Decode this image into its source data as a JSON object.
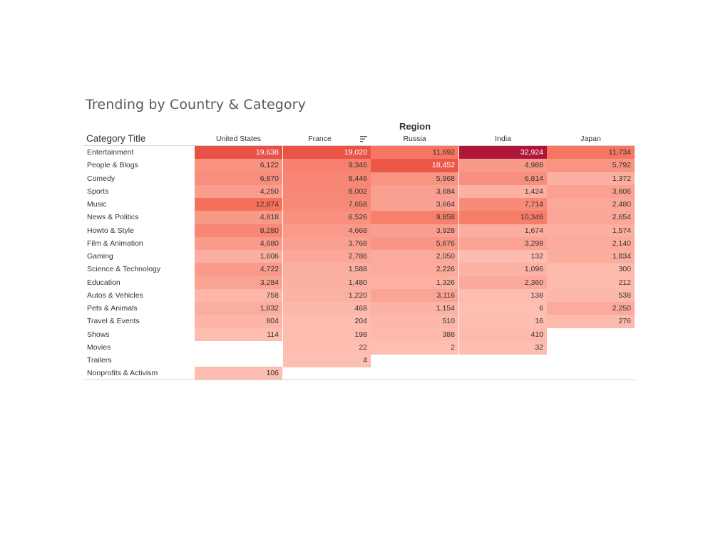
{
  "title": "Trending by Country & Category",
  "column_group_label": "Region",
  "row_header_label": "Category Title",
  "icons": {
    "sort": "sort-descending-icon"
  },
  "chart_data": {
    "type": "heatmap",
    "title": "Trending by Country & Category",
    "row_header": "Category Title",
    "column_header": "Region",
    "columns": [
      "United States",
      "France",
      "Russia",
      "India",
      "Japan"
    ],
    "sorted_column": "France",
    "rows": [
      "Entertainment",
      "People & Blogs",
      "Comedy",
      "Sports",
      "Music",
      "News & Politics",
      "Howto & Style",
      "Film & Animation",
      "Gaming",
      "Science & Technology",
      "Education",
      "Autos & Vehicles",
      "Pets & Animals",
      "Travel & Events",
      "Shows",
      "Movies",
      "Trailers",
      "Nonprofits & Activism"
    ],
    "values": [
      [
        19638,
        19020,
        11692,
        32924,
        11734
      ],
      [
        6122,
        9346,
        18452,
        4988,
        5792
      ],
      [
        6870,
        8446,
        5968,
        6814,
        1372
      ],
      [
        4250,
        8002,
        3684,
        1424,
        3606
      ],
      [
        12874,
        7658,
        3664,
        7714,
        2480
      ],
      [
        4818,
        6526,
        9858,
        10346,
        2654
      ],
      [
        8280,
        4668,
        3928,
        1674,
        1574
      ],
      [
        4680,
        3768,
        5676,
        3298,
        2140
      ],
      [
        1606,
        2786,
        2050,
        132,
        1834
      ],
      [
        4722,
        1588,
        2226,
        1096,
        300
      ],
      [
        3284,
        1480,
        1326,
        2360,
        212
      ],
      [
        758,
        1220,
        3116,
        138,
        538
      ],
      [
        1832,
        468,
        1154,
        6,
        2250
      ],
      [
        804,
        204,
        510,
        16,
        276
      ],
      [
        114,
        198,
        388,
        410,
        null
      ],
      [
        null,
        22,
        2,
        32,
        null
      ],
      [
        null,
        4,
        null,
        null,
        null
      ],
      [
        106,
        null,
        null,
        null,
        null
      ]
    ],
    "color_scale": {
      "min_color": "#fdbfb2",
      "mid_color": "#f4604a",
      "max_color": "#b0163a"
    }
  }
}
